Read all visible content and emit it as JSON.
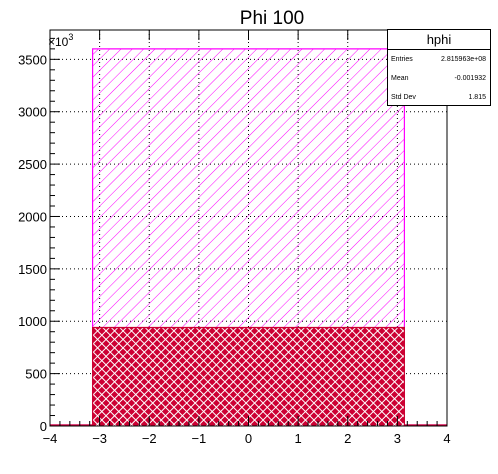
{
  "chart_data": {
    "type": "histogram",
    "title": "Phi 100",
    "xlabel": "",
    "ylabel": "",
    "y_multiplier_label": "×10³",
    "xlim": [
      -4,
      4
    ],
    "ylim": [
      0,
      3780
    ],
    "x_ticks": [
      "−4",
      "−3",
      "−2",
      "−1",
      "0",
      "1",
      "2",
      "3",
      "4"
    ],
    "y_ticks": [
      "0",
      "500",
      "1000",
      "1500",
      "2000",
      "2500",
      "3000",
      "3500"
    ],
    "grid": true,
    "series": [
      {
        "range": [
          -3.1416,
          3.1416
        ],
        "level": 3600,
        "fill": "#ff00ff",
        "style": "diagonal-hatch"
      },
      {
        "range": [
          -3.1416,
          3.1416
        ],
        "level": 940,
        "fill": "#cc0033",
        "style": "cross-hatch"
      }
    ],
    "outside_level": 0
  },
  "stats": {
    "title": "hphi",
    "rows": [
      {
        "label": "Entries",
        "value": "2.815963e+08"
      },
      {
        "label": "Mean",
        "value": "-0.001932"
      },
      {
        "label": "Std Dev",
        "value": "1.815"
      }
    ]
  },
  "colors": {
    "magenta": "#ff00ff",
    "red": "#cc0033"
  }
}
